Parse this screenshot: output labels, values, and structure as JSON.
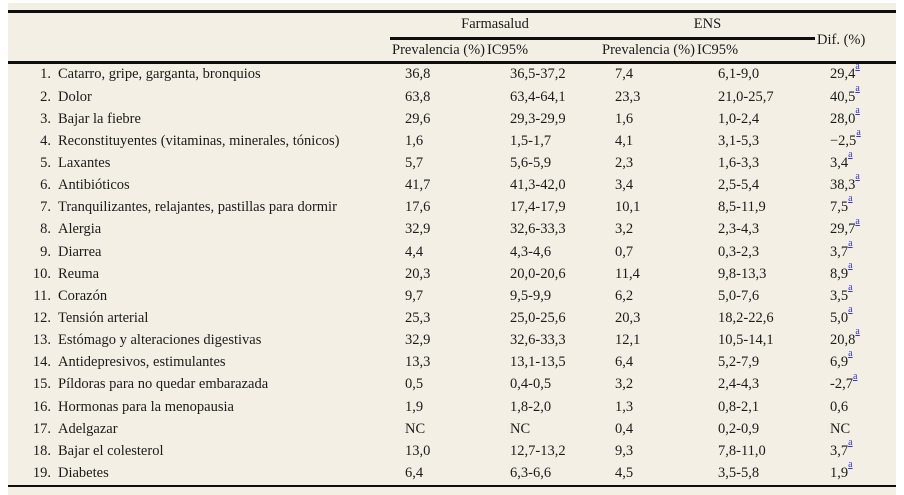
{
  "table": {
    "groups": {
      "farmasalud": "Farmasalud",
      "ens": "ENS",
      "dif": "Dif. (%)"
    },
    "subheaders": {
      "f_prev": "Prevalencia (%)",
      "f_ic": "IC95%",
      "e_prev": "Prevalencia (%)",
      "e_ic": "IC95%"
    },
    "footnote_marker": "a",
    "colors": {
      "background": "#f3efe4",
      "text": "#1b1b1b",
      "rule": "#0e0e0e",
      "footnote_link": "#3434cf"
    },
    "rows": [
      {
        "num": "1.",
        "label": "Catarro, gripe, garganta, bronquios",
        "f_prev": "36,8",
        "f_ic": "36,5-37,2",
        "e_prev": "7,4",
        "e_ic": "6,1-9,0",
        "dif": "29,4",
        "dif_sup": "a"
      },
      {
        "num": "2.",
        "label": "Dolor",
        "f_prev": "63,8",
        "f_ic": "63,4-64,1",
        "e_prev": "23,3",
        "e_ic": "21,0-25,7",
        "dif": "40,5",
        "dif_sup": "a"
      },
      {
        "num": "3.",
        "label": "Bajar la fiebre",
        "f_prev": "29,6",
        "f_ic": "29,3-29,9",
        "e_prev": "1,6",
        "e_ic": "1,0-2,4",
        "dif": "28,0",
        "dif_sup": "a"
      },
      {
        "num": "4.",
        "label": "Reconstituyentes (vitaminas, minerales, tónicos)",
        "f_prev": "1,6",
        "f_ic": "1,5-1,7",
        "e_prev": "4,1",
        "e_ic": "3,1-5,3",
        "dif": "−2,5",
        "dif_sup": "a"
      },
      {
        "num": "5.",
        "label": "Laxantes",
        "f_prev": "5,7",
        "f_ic": "5,6-5,9",
        "e_prev": "2,3",
        "e_ic": "1,6-3,3",
        "dif": "3,4",
        "dif_sup": "a"
      },
      {
        "num": "6.",
        "label": "Antibióticos",
        "f_prev": "41,7",
        "f_ic": "41,3-42,0",
        "e_prev": "3,4",
        "e_ic": "2,5-5,4",
        "dif": "38,3",
        "dif_sup": "a"
      },
      {
        "num": "7.",
        "label": "Tranquilizantes, relajantes, pastillas para dormir",
        "f_prev": "17,6",
        "f_ic": "17,4-17,9",
        "e_prev": "10,1",
        "e_ic": "8,5-11,9",
        "dif": "7,5",
        "dif_sup": "a"
      },
      {
        "num": "8.",
        "label": "Alergia",
        "f_prev": "32,9",
        "f_ic": "32,6-33,3",
        "e_prev": "3,2",
        "e_ic": "2,3-4,3",
        "dif": "29,7",
        "dif_sup": "a"
      },
      {
        "num": "9.",
        "label": "Diarrea",
        "f_prev": "4,4",
        "f_ic": "4,3-4,6",
        "e_prev": "0,7",
        "e_ic": "0,3-2,3",
        "dif": "3,7",
        "dif_sup": "a"
      },
      {
        "num": "10.",
        "label": "Reuma",
        "f_prev": "20,3",
        "f_ic": "20,0-20,6",
        "e_prev": "11,4",
        "e_ic": "9,8-13,3",
        "dif": "8,9",
        "dif_sup": "a"
      },
      {
        "num": "11.",
        "label": "Corazón",
        "f_prev": "9,7",
        "f_ic": "9,5-9,9",
        "e_prev": "6,2",
        "e_ic": "5,0-7,6",
        "dif": "3,5",
        "dif_sup": "a"
      },
      {
        "num": "12.",
        "label": "Tensión arterial",
        "f_prev": "25,3",
        "f_ic": "25,0-25,6",
        "e_prev": "20,3",
        "e_ic": "18,2-22,6",
        "dif": "5,0",
        "dif_sup": "a"
      },
      {
        "num": "13.",
        "label": "Estómago y alteraciones digestivas",
        "f_prev": "32,9",
        "f_ic": "32,6-33,3",
        "e_prev": "12,1",
        "e_ic": "10,5-14,1",
        "dif": "20,8",
        "dif_sup": "a"
      },
      {
        "num": "14.",
        "label": "Antidepresivos, estimulantes",
        "f_prev": "13,3",
        "f_ic": "13,1-13,5",
        "e_prev": "6,4",
        "e_ic": "5,2-7,9",
        "dif": "6,9",
        "dif_sup": "a"
      },
      {
        "num": "15.",
        "label": "Píldoras para no quedar embarazada",
        "f_prev": "0,5",
        "f_ic": "0,4-0,5",
        "e_prev": "3,2",
        "e_ic": "2,4-4,3",
        "dif": "-2,7",
        "dif_sup": "a"
      },
      {
        "num": "16.",
        "label": "Hormonas para la menopausia",
        "f_prev": "1,9",
        "f_ic": "1,8-2,0",
        "e_prev": "1,3",
        "e_ic": "0,8-2,1",
        "dif": "0,6",
        "dif_sup": ""
      },
      {
        "num": "17.",
        "label": "Adelgazar",
        "f_prev": "NC",
        "f_ic": "NC",
        "e_prev": "0,4",
        "e_ic": "0,2-0,9",
        "dif": "NC",
        "dif_sup": ""
      },
      {
        "num": "18.",
        "label": "Bajar el colesterol",
        "f_prev": "13,0",
        "f_ic": "12,7-13,2",
        "e_prev": "9,3",
        "e_ic": "7,8-11,0",
        "dif": "3,7",
        "dif_sup": "a"
      },
      {
        "num": "19.",
        "label": "Diabetes",
        "f_prev": "6,4",
        "f_ic": "6,3-6,6",
        "e_prev": "4,5",
        "e_ic": "3,5-5,8",
        "dif": "1,9",
        "dif_sup": "a"
      }
    ]
  }
}
